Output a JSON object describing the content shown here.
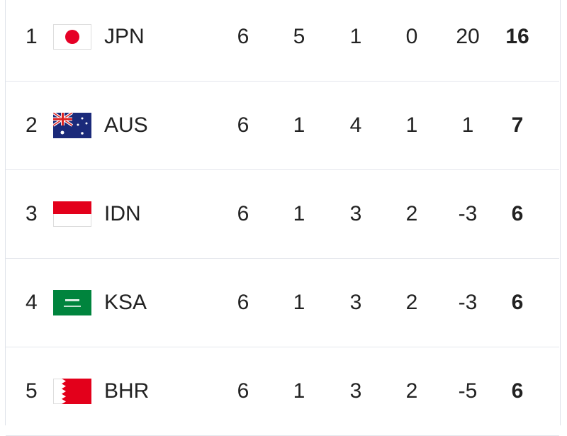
{
  "table": {
    "rows": [
      [
        1,
        "JPN",
        6,
        5,
        1,
        0,
        20,
        16
      ],
      [
        2,
        "AUS",
        6,
        1,
        4,
        1,
        1,
        7
      ],
      [
        3,
        "IDN",
        6,
        1,
        3,
        2,
        -3,
        6
      ],
      [
        4,
        "KSA",
        6,
        1,
        3,
        2,
        -3,
        6
      ],
      [
        5,
        "BHR",
        6,
        1,
        3,
        2,
        -5,
        6
      ]
    ]
  }
}
